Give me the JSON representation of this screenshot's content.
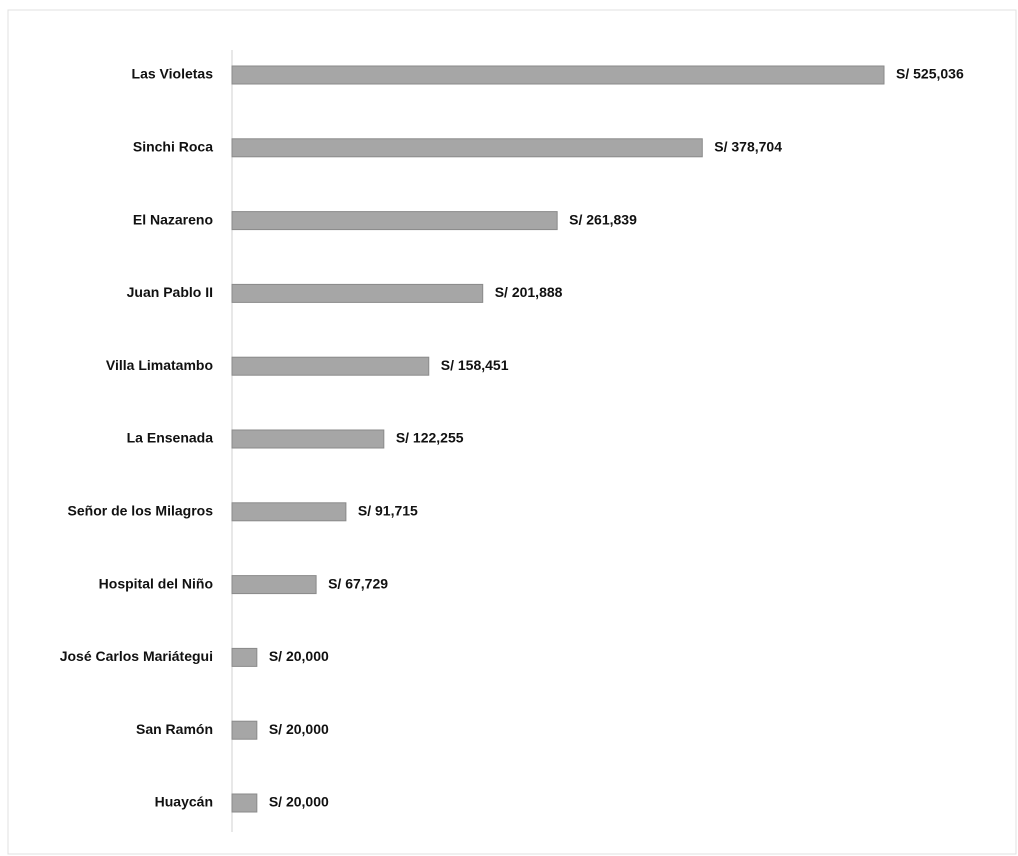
{
  "chart_data": {
    "type": "bar",
    "orientation": "horizontal",
    "categories": [
      "Las Violetas",
      "Sinchi Roca",
      "El Nazareno",
      "Juan Pablo II",
      "Villa Limatambo",
      "La Ensenada",
      "Señor de los Milagros",
      "Hospital del Niño",
      "José Carlos Mariátegui",
      "San Ramón",
      "Huaycán"
    ],
    "values": [
      525036,
      378704,
      261839,
      201888,
      158451,
      122255,
      91715,
      67729,
      20000,
      20000,
      20000
    ],
    "value_labels": [
      "S/ 525,036",
      "S/ 378,704",
      "S/ 261,839",
      "S/ 201,888",
      "S/ 158,451",
      "S/ 122,255",
      "S/ 91,715",
      "S/ 67,729",
      "S/ 20,000",
      "S/ 20,000",
      "S/ 20,000"
    ],
    "color": "#a6a6a6"
  }
}
